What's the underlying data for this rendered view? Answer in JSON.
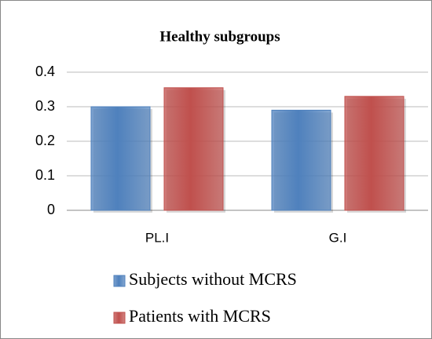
{
  "chart_data": {
    "type": "bar",
    "title": "Healthy subgroups",
    "categories": [
      "PL.I",
      "G.I"
    ],
    "series": [
      {
        "name": "Subjects without MCRS",
        "color": "#4f81bd",
        "values": [
          0.3,
          0.29
        ]
      },
      {
        "name": "Patients with MCRS",
        "color": "#c0504d",
        "values": [
          0.355,
          0.33
        ]
      }
    ],
    "ylim": [
      0,
      0.4
    ],
    "yticks": [
      0,
      0.1,
      0.2,
      0.3,
      0.4
    ],
    "grid": true,
    "legend": "bottom"
  }
}
